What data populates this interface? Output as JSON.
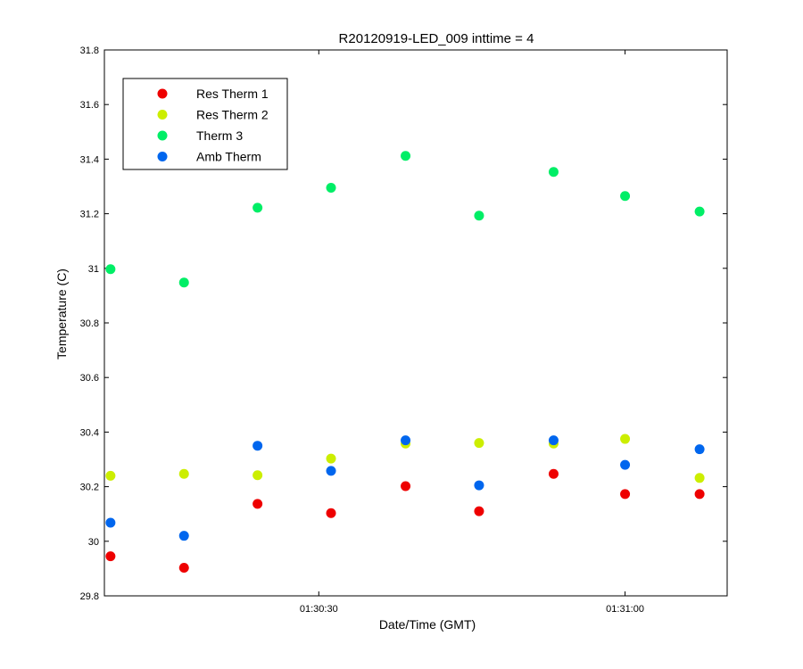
{
  "chart_data": {
    "type": "scatter",
    "title": "R20120919-LED_009 inttime = 4",
    "xlabel": "Date/Time (GMT)",
    "ylabel": "Temperature (C)",
    "ylim": [
      29.8,
      31.8
    ],
    "y_ticks": [
      29.8,
      30,
      30.2,
      30.4,
      30.6,
      30.8,
      31,
      31.2,
      31.4,
      31.6,
      31.8
    ],
    "y_tick_labels": [
      "29.8",
      "30",
      "30.2",
      "30.4",
      "30.6",
      "30.8",
      "31",
      "31.2",
      "31.4",
      "31.6",
      "31.8"
    ],
    "xlim": [
      "01:30:09",
      "01:31:10"
    ],
    "x_ticks": [
      "01:30:30",
      "01:31:00"
    ],
    "x_tick_labels": [
      "01:30:30",
      "01:31:00"
    ],
    "grid": false,
    "legend_position": "top-left",
    "x": [
      "01:30:09.6",
      "01:30:16.8",
      "01:30:24.0",
      "01:30:31.2",
      "01:30:38.5",
      "01:30:45.7",
      "01:30:53.0",
      "01:31:00.0",
      "01:31:07.3"
    ],
    "series": [
      {
        "name": "Res Therm 1",
        "color": "#ee0000",
        "values": [
          29.945,
          29.903,
          30.137,
          30.103,
          30.202,
          30.11,
          30.247,
          30.173,
          30.173
        ]
      },
      {
        "name": "Res Therm 2",
        "color": "#ccee00",
        "values": [
          30.24,
          30.247,
          30.242,
          30.303,
          30.358,
          30.36,
          30.358,
          30.375,
          30.232
        ]
      },
      {
        "name": "Therm 3",
        "color": "#00ee66",
        "values": [
          30.997,
          30.948,
          31.222,
          31.295,
          31.412,
          31.193,
          31.353,
          31.265,
          31.208
        ]
      },
      {
        "name": "Amb Therm",
        "color": "#0066ee",
        "values": [
          30.068,
          30.02,
          30.35,
          30.258,
          30.37,
          30.205,
          30.37,
          30.28,
          30.337
        ]
      }
    ]
  }
}
